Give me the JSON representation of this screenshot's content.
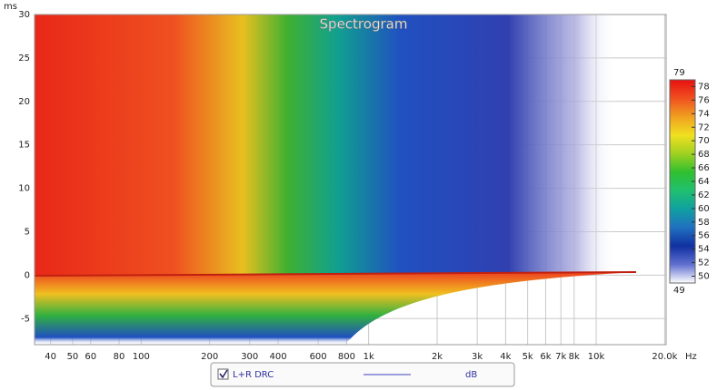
{
  "chart_data": {
    "type": "spectrogram",
    "title": "Spectrogram",
    "y_label": "ms",
    "x_label": "Hz",
    "xlim": [
      34,
      20300
    ],
    "x_log": true,
    "xticks": [
      40,
      50,
      60,
      80,
      100,
      200,
      300,
      400,
      600,
      800,
      {
        "value": 1000,
        "label": "1k"
      },
      {
        "value": 2000,
        "label": "2k"
      },
      {
        "value": 3000,
        "label": "3k"
      },
      {
        "value": 4000,
        "label": "4k"
      },
      {
        "value": 5000,
        "label": "5k"
      },
      {
        "value": 6000,
        "label": "6k"
      },
      {
        "value": 7000,
        "label": "7k"
      },
      {
        "value": 8000,
        "label": "8k"
      },
      {
        "value": 10000,
        "label": "10k"
      },
      {
        "value": 20000,
        "label": "20.0k"
      }
    ],
    "ylim": [
      -8,
      30
    ],
    "yticks": [
      -5,
      0,
      5,
      10,
      15,
      20,
      25,
      30
    ],
    "grid": true,
    "colorbar": {
      "lim": [
        49,
        79
      ],
      "ticks": [
        50,
        52,
        54,
        56,
        58,
        60,
        62,
        64,
        66,
        68,
        70,
        72,
        74,
        76,
        78
      ],
      "colors": [
        "#ffffff",
        "#6070d0",
        "#1030a0",
        "#2070c0",
        "#10a0a0",
        "#20c070",
        "#30c030",
        "#a0d020",
        "#f0e020",
        "#f0a020",
        "#f05020",
        "#e81010"
      ]
    },
    "legend": {
      "checked": true,
      "series": "L+R DRC",
      "unit": "dB",
      "color": "#4040c0"
    }
  }
}
